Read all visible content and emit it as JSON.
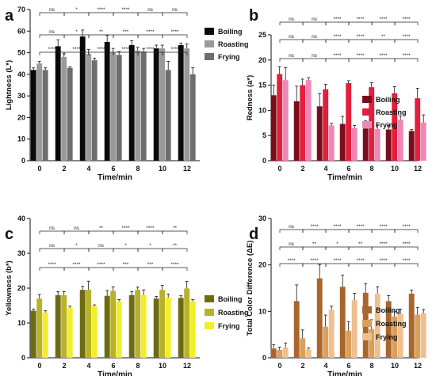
{
  "chart_data": [
    {
      "type": "bar",
      "panel_label": "a",
      "categories": [
        "0",
        "2",
        "4",
        "6",
        "8",
        "10",
        "12"
      ],
      "xlabel": "Time/min",
      "ylabel": "Lightness (L*)",
      "ylim": [
        0,
        70
      ],
      "yticks": [
        "0",
        "10",
        "20",
        "30",
        "40",
        "50",
        "60",
        "70"
      ],
      "legend_position": "top-right",
      "series": [
        {
          "name": "Boiling",
          "color": "#0a0a0a",
          "values": [
            42,
            53,
            57.5,
            55,
            53.5,
            52,
            53.5
          ],
          "errors": [
            1.0,
            3.0,
            3.0,
            3.0,
            2.0,
            1.5,
            1.0
          ]
        },
        {
          "name": "Roasting",
          "color": "#9a9a9a",
          "values": [
            45,
            48,
            49.5,
            50,
            51,
            52,
            52
          ],
          "errors": [
            1.0,
            1.5,
            2.0,
            2.0,
            1.5,
            1.5,
            2.0
          ]
        },
        {
          "name": "Frying",
          "color": "#6e6e6e",
          "values": [
            42,
            43,
            46.5,
            49,
            50.5,
            42,
            40
          ],
          "errors": [
            1.0,
            0.5,
            1.0,
            1.5,
            1.5,
            4.0,
            3.0
          ]
        }
      ],
      "significance": [
        {
          "row": 0,
          "pairs": [
            [
              0,
              2,
              "ns"
            ],
            [
              2,
              4,
              "*"
            ],
            [
              4,
              6,
              "****"
            ],
            [
              6,
              8,
              "****"
            ],
            [
              8,
              10,
              "ns"
            ],
            [
              10,
              12,
              "ns"
            ]
          ]
        },
        {
          "row": 1,
          "pairs": [
            [
              0,
              2,
              "ns"
            ],
            [
              2,
              4,
              "*"
            ],
            [
              4,
              6,
              "**"
            ],
            [
              6,
              8,
              "***"
            ],
            [
              8,
              10,
              "****"
            ],
            [
              10,
              12,
              "****"
            ]
          ]
        },
        {
          "row": 2,
          "pairs": [
            [
              0,
              2,
              "****"
            ],
            [
              2,
              4,
              "****"
            ],
            [
              4,
              6,
              "****"
            ],
            [
              6,
              8,
              "****"
            ],
            [
              8,
              10,
              "****"
            ],
            [
              10,
              12,
              "****"
            ]
          ]
        }
      ]
    },
    {
      "type": "bar",
      "panel_label": "b",
      "categories": [
        "0",
        "2",
        "4",
        "6",
        "8",
        "10",
        "12"
      ],
      "xlabel": "Time/min",
      "ylabel": "Redness (a*)",
      "ylim": [
        0,
        25
      ],
      "yticks": [
        "0",
        "5",
        "10",
        "15",
        "20",
        "25"
      ],
      "legend_position": "center-right",
      "series": [
        {
          "name": "Boiling",
          "color": "#7a0d1b",
          "values": [
            13,
            11.8,
            10.8,
            7.3,
            6.4,
            6.2,
            5.9
          ],
          "errors": [
            2.0,
            3.0,
            2.5,
            1.5,
            1.5,
            0.8,
            0.3
          ]
        },
        {
          "name": "Roasting",
          "color": "#e21f3c",
          "values": [
            17.2,
            15,
            14.2,
            15.4,
            14.6,
            13.4,
            12.4
          ],
          "errors": [
            1.5,
            1.2,
            1.0,
            0.5,
            0.9,
            1.3,
            2.0
          ]
        },
        {
          "name": "Frying",
          "color": "#f086b6",
          "values": [
            16,
            16,
            7,
            6.5,
            6.3,
            8.1,
            7.6
          ],
          "errors": [
            2.5,
            0.5,
            0.4,
            0.5,
            0.8,
            0.8,
            1.5
          ]
        }
      ],
      "significance": [
        {
          "row": 0,
          "pairs": [
            [
              0,
              2,
              "ns"
            ],
            [
              2,
              4,
              "ns"
            ],
            [
              4,
              6,
              "****"
            ],
            [
              6,
              8,
              "****"
            ],
            [
              8,
              10,
              "****"
            ],
            [
              10,
              12,
              "****"
            ]
          ]
        },
        {
          "row": 1,
          "pairs": [
            [
              0,
              2,
              "ns"
            ],
            [
              2,
              4,
              "ns"
            ],
            [
              4,
              6,
              "****"
            ],
            [
              6,
              8,
              "****"
            ],
            [
              8,
              10,
              "**"
            ],
            [
              10,
              12,
              "****"
            ]
          ]
        },
        {
          "row": 2,
          "pairs": [
            [
              0,
              2,
              "ns"
            ],
            [
              2,
              4,
              "ns"
            ],
            [
              4,
              6,
              "****"
            ],
            [
              6,
              8,
              "****"
            ],
            [
              8,
              10,
              "****"
            ],
            [
              10,
              12,
              "****"
            ]
          ]
        }
      ]
    },
    {
      "type": "bar",
      "panel_label": "c",
      "categories": [
        "0",
        "2",
        "4",
        "6",
        "8",
        "10",
        "12"
      ],
      "xlabel": "Time/min",
      "ylabel": "Yellowness (b*)",
      "ylim": [
        0,
        40
      ],
      "yticks": [
        "0",
        "10",
        "20",
        "30",
        "40"
      ],
      "legend_position": "center-right",
      "series": [
        {
          "name": "Boiling",
          "color": "#6c6b12",
          "values": [
            13.5,
            18,
            19.5,
            17.8,
            18,
            17,
            17.2
          ],
          "errors": [
            0.5,
            1.0,
            1.0,
            1.5,
            1.0,
            0.6,
            0.6
          ]
        },
        {
          "name": "Roasting",
          "color": "#b7b22a",
          "values": [
            17,
            18,
            19.5,
            19.2,
            19.5,
            19.5,
            19.9
          ],
          "errors": [
            1.2,
            1.0,
            2.5,
            1.2,
            0.8,
            1.3,
            2.0
          ]
        },
        {
          "name": "Frying",
          "color": "#f1ee2a",
          "values": [
            13,
            14.3,
            14.9,
            16.2,
            18,
            17.3,
            16.2
          ],
          "errors": [
            0.5,
            0.5,
            0.3,
            0.5,
            1.5,
            1.0,
            0.5
          ]
        }
      ],
      "significance": [
        {
          "row": 0,
          "pairs": [
            [
              0,
              2,
              "ns"
            ],
            [
              2,
              4,
              "ns"
            ],
            [
              4,
              6,
              "**"
            ],
            [
              6,
              8,
              "****"
            ],
            [
              8,
              10,
              "****"
            ],
            [
              10,
              12,
              "**"
            ]
          ]
        },
        {
          "row": 1,
          "pairs": [
            [
              0,
              2,
              "ns"
            ],
            [
              2,
              4,
              "*"
            ],
            [
              4,
              6,
              "ns"
            ],
            [
              6,
              8,
              "*"
            ],
            [
              8,
              10,
              "*"
            ],
            [
              10,
              12,
              "**"
            ]
          ]
        },
        {
          "row": 2,
          "pairs": [
            [
              0,
              2,
              "****"
            ],
            [
              2,
              4,
              "****"
            ],
            [
              4,
              6,
              "****"
            ],
            [
              6,
              8,
              "***"
            ],
            [
              8,
              10,
              "***"
            ],
            [
              10,
              12,
              "****"
            ]
          ]
        }
      ]
    },
    {
      "type": "bar",
      "panel_label": "d",
      "categories": [
        "0",
        "2",
        "4",
        "6",
        "8",
        "10",
        "12"
      ],
      "xlabel": "Time/min",
      "ylabel": "Total Color Difference (ΔE)",
      "ylim": [
        0,
        30
      ],
      "yticks": [
        "0",
        "10",
        "20",
        "30"
      ],
      "legend_position": "center-right",
      "series": [
        {
          "name": "Boiling",
          "color": "#a9652c",
          "values": [
            2,
            12.2,
            17.1,
            15.3,
            14,
            12.2,
            13.8
          ],
          "errors": [
            0.8,
            3.5,
            3.0,
            2.5,
            2.0,
            1.2,
            0.8
          ]
        },
        {
          "name": "Roasting",
          "color": "#d8a05a",
          "values": [
            1.7,
            4.2,
            6.7,
            5.8,
            6.2,
            8.9,
            9.3
          ],
          "errors": [
            0.6,
            1.8,
            2.5,
            2.0,
            2.0,
            1.0,
            1.5
          ]
        },
        {
          "name": "Frying",
          "color": "#f0bf8f",
          "values": [
            2.2,
            1.8,
            10.3,
            12.4,
            13.8,
            9.5,
            9.6
          ],
          "errors": [
            1.0,
            0.3,
            0.8,
            1.5,
            1.5,
            1.0,
            0.8
          ]
        }
      ],
      "significance": [
        {
          "row": 0,
          "pairs": [
            [
              0,
              2,
              "ns"
            ],
            [
              2,
              4,
              "****"
            ],
            [
              4,
              6,
              "****"
            ],
            [
              6,
              8,
              "****"
            ],
            [
              8,
              10,
              "****"
            ],
            [
              10,
              12,
              "****"
            ]
          ]
        },
        {
          "row": 1,
          "pairs": [
            [
              0,
              2,
              "ns"
            ],
            [
              2,
              4,
              "**"
            ],
            [
              4,
              6,
              "*"
            ],
            [
              6,
              8,
              "**"
            ],
            [
              8,
              10,
              "****"
            ],
            [
              10,
              12,
              "****"
            ]
          ]
        },
        {
          "row": 2,
          "pairs": [
            [
              0,
              2,
              "****"
            ],
            [
              2,
              4,
              "****"
            ],
            [
              4,
              6,
              "****"
            ],
            [
              6,
              8,
              "****"
            ],
            [
              8,
              10,
              "****"
            ],
            [
              10,
              12,
              "****"
            ]
          ]
        }
      ]
    }
  ]
}
